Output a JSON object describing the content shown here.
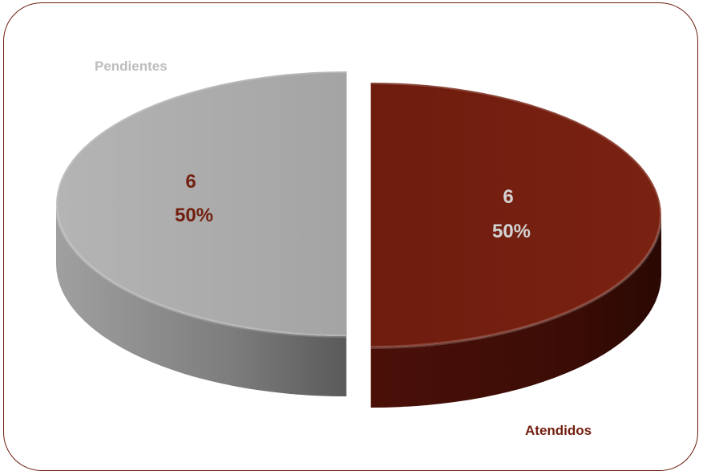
{
  "chart_data": {
    "type": "pie",
    "style": "3d-exploded",
    "categories": [
      "Atendidos",
      "Pendientes"
    ],
    "values": [
      6,
      6
    ],
    "percent_labels": [
      "50%",
      "50%"
    ],
    "value_labels": [
      "6",
      "6"
    ],
    "colors": {
      "Atendidos": "#731f10",
      "Pendientes": "#a8a8a8"
    },
    "label_colors": {
      "Atendidos": "#731f10",
      "Pendientes": "#bdbdbd",
      "Atendidos_inside": "#d3d3d3",
      "Pendientes_inside": "#731f10"
    }
  }
}
